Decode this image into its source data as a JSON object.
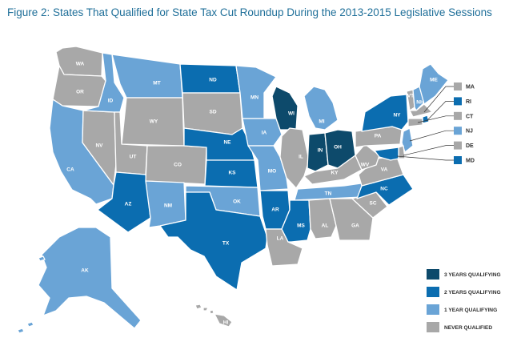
{
  "title": "Figure 2: States That Qualified for State Tax Cut Roundup During the 2013-2015 Legislative Sessions",
  "colors": {
    "three_years": "#0d4a6b",
    "two_years": "#0b6db0",
    "one_year": "#6aa4d6",
    "never": "#a8a8a8"
  },
  "legend": [
    {
      "key": "three_years",
      "label": "3 YEARS QUALIFYING"
    },
    {
      "key": "two_years",
      "label": "2 YEARS QUALIFYING"
    },
    {
      "key": "one_year",
      "label": "1 YEAR QUALIFYING"
    },
    {
      "key": "never",
      "label": "NEVER QUALIFIED"
    }
  ],
  "states": {
    "WA": "never",
    "OR": "never",
    "CA": "one_year",
    "NV": "never",
    "ID": "one_year",
    "MT": "one_year",
    "WY": "never",
    "UT": "never",
    "AZ": "two_years",
    "CO": "never",
    "NM": "one_year",
    "ND": "two_years",
    "SD": "never",
    "NE": "two_years",
    "KS": "two_years",
    "OK": "one_year",
    "TX": "two_years",
    "MN": "one_year",
    "IA": "one_year",
    "MO": "one_year",
    "AR": "two_years",
    "LA": "never",
    "WI": "three_years",
    "IL": "never",
    "MI": "one_year",
    "IN": "three_years",
    "OH": "three_years",
    "KY": "never",
    "TN": "one_year",
    "MS": "two_years",
    "AL": "never",
    "GA": "never",
    "FL": "three_years",
    "SC": "never",
    "NC": "two_years",
    "VA": "never",
    "WV": "never",
    "PA": "never",
    "NY": "two_years",
    "VT": "never",
    "NH": "one_year",
    "ME": "one_year",
    "NJ": "one_year",
    "MA": "never",
    "RI": "two_years",
    "CT": "never",
    "DE": "never",
    "MD": "two_years",
    "AK": "one_year",
    "HI": "never"
  },
  "northeast_callouts": [
    "MA",
    "RI",
    "CT",
    "NJ",
    "DE",
    "MD"
  ]
}
